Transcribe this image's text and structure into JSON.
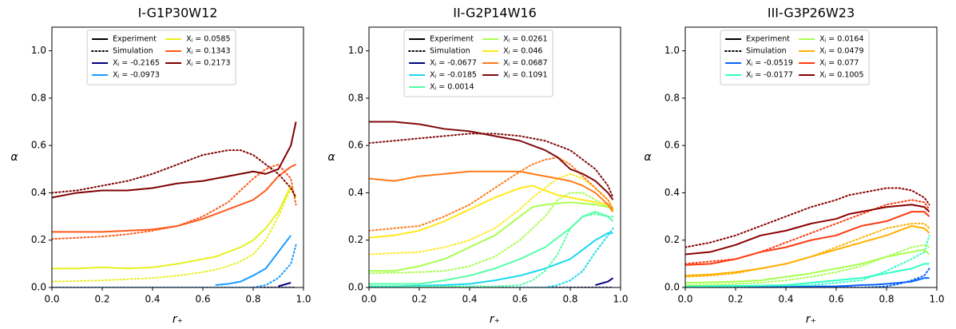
{
  "chart_data": [
    {
      "type": "line",
      "title": "I-G1P30W12",
      "x_label": "r₊",
      "y_label": "α",
      "xlim": [
        0,
        1
      ],
      "ylim": [
        0,
        1.1
      ],
      "xticks": [
        {
          "value": 0,
          "label": "0.0"
        },
        {
          "value": 0.2,
          "label": "0.2"
        },
        {
          "value": 0.4,
          "label": "0.4"
        },
        {
          "value": 0.6,
          "label": "0.6"
        },
        {
          "value": 0.8,
          "label": "0.8"
        },
        {
          "value": 1,
          "label": "1.0"
        }
      ],
      "yticks": [
        {
          "value": 0,
          "label": "0.0"
        },
        {
          "value": 0.2,
          "label": "0.2"
        },
        {
          "value": 0.4,
          "label": "0.4"
        },
        {
          "value": 0.6,
          "label": "0.6"
        },
        {
          "value": 0.8,
          "label": "0.8"
        },
        {
          "value": 1,
          "label": "1.0"
        }
      ],
      "legend_loc": "upper",
      "line_styles": [
        {
          "name": "Experiment",
          "dash": "solid"
        },
        {
          "name": "Simulation",
          "dash": "dotted"
        }
      ],
      "x": [
        0,
        0.1,
        0.2,
        0.3,
        0.4,
        0.5,
        0.6,
        0.65,
        0.7,
        0.75,
        0.8,
        0.85,
        0.9,
        0.95,
        0.97
      ],
      "series": [
        {
          "name": "Xⱼ = -0.2165",
          "color": "#00007f",
          "experiment": [
            null,
            null,
            null,
            null,
            null,
            null,
            null,
            null,
            null,
            null,
            null,
            null,
            0.005,
            0.02,
            null
          ],
          "simulation": [
            0,
            0,
            0,
            0,
            0,
            0,
            0,
            0,
            0,
            0,
            0,
            0,
            0,
            0,
            0
          ]
        },
        {
          "name": "Xⱼ = -0.0973",
          "color": "#1a9cff",
          "experiment": [
            null,
            null,
            null,
            null,
            null,
            null,
            null,
            0.01,
            0.015,
            0.025,
            0.05,
            0.08,
            0.15,
            0.22,
            null
          ],
          "simulation": [
            0,
            0,
            0,
            0,
            0,
            0,
            0,
            0,
            0,
            0,
            0,
            0.01,
            0.04,
            0.1,
            0.18
          ]
        },
        {
          "name": "Xⱼ = 0.0585",
          "color": "#e8f020",
          "experiment": [
            0.08,
            0.08,
            0.085,
            0.08,
            0.085,
            0.1,
            0.12,
            0.13,
            0.15,
            0.17,
            0.2,
            0.25,
            0.32,
            0.43,
            null
          ],
          "simulation": [
            0.025,
            0.027,
            0.03,
            0.035,
            0.04,
            0.05,
            0.065,
            0.075,
            0.09,
            0.11,
            0.14,
            0.2,
            0.3,
            0.42,
            0.38
          ]
        },
        {
          "name": "Xⱼ = 0.1343",
          "color": "#ff5a1a",
          "experiment": [
            0.235,
            0.235,
            0.235,
            0.24,
            0.245,
            0.26,
            0.29,
            0.31,
            0.33,
            0.35,
            0.37,
            0.41,
            0.47,
            0.51,
            0.52
          ],
          "simulation": [
            0.205,
            0.21,
            0.215,
            0.225,
            0.24,
            0.26,
            0.3,
            0.33,
            0.36,
            0.41,
            0.46,
            0.5,
            0.52,
            0.46,
            0.35
          ]
        },
        {
          "name": "Xⱼ = 0.2173",
          "color": "#800000",
          "experiment": [
            0.38,
            0.4,
            0.41,
            0.41,
            0.42,
            0.44,
            0.45,
            0.46,
            0.47,
            0.48,
            0.49,
            0.48,
            0.5,
            0.6,
            0.7
          ],
          "simulation": [
            0.4,
            0.41,
            0.43,
            0.45,
            0.48,
            0.52,
            0.56,
            0.57,
            0.58,
            0.58,
            0.56,
            0.52,
            0.48,
            0.42,
            0.38
          ]
        }
      ]
    },
    {
      "type": "line",
      "title": "II-G2P14W16",
      "x_label": "r₊",
      "y_label": "α",
      "xlim": [
        0,
        1
      ],
      "ylim": [
        0,
        1.1
      ],
      "xticks": [
        {
          "value": 0,
          "label": "0.0"
        },
        {
          "value": 0.2,
          "label": "0.2"
        },
        {
          "value": 0.4,
          "label": "0.4"
        },
        {
          "value": 0.6,
          "label": "0.6"
        },
        {
          "value": 0.8,
          "label": "0.8"
        },
        {
          "value": 1,
          "label": "1.0"
        }
      ],
      "yticks": [
        {
          "value": 0,
          "label": "0.0"
        },
        {
          "value": 0.2,
          "label": "0.2"
        },
        {
          "value": 0.4,
          "label": "0.4"
        },
        {
          "value": 0.6,
          "label": "0.6"
        },
        {
          "value": 0.8,
          "label": "0.8"
        },
        {
          "value": 1,
          "label": "1.0"
        }
      ],
      "legend_loc": "upper",
      "line_styles": [
        {
          "name": "Experiment",
          "dash": "solid"
        },
        {
          "name": "Simulation",
          "dash": "dotted"
        }
      ],
      "x": [
        0,
        0.1,
        0.2,
        0.3,
        0.4,
        0.5,
        0.6,
        0.65,
        0.7,
        0.75,
        0.8,
        0.85,
        0.9,
        0.95,
        0.97
      ],
      "series": [
        {
          "name": "Xⱼ = -0.0677",
          "color": "#00007f",
          "experiment": [
            null,
            null,
            null,
            null,
            null,
            null,
            null,
            null,
            null,
            null,
            null,
            null,
            0.01,
            0.025,
            0.04
          ],
          "simulation": [
            0,
            0,
            0,
            0,
            0,
            0,
            0,
            0,
            0,
            0,
            0,
            0,
            0,
            0,
            0
          ]
        },
        {
          "name": "Xⱼ = -0.0185",
          "color": "#1ad8f0",
          "experiment": [
            0.005,
            0.005,
            0.008,
            0.01,
            0.015,
            0.03,
            0.05,
            0.065,
            0.08,
            0.1,
            0.12,
            0.16,
            0.2,
            0.23,
            0.23
          ],
          "simulation": [
            0,
            0,
            0,
            0,
            0,
            0,
            0,
            0,
            0,
            0.01,
            0.03,
            0.07,
            0.15,
            0.22,
            0.25
          ]
        },
        {
          "name": "Xⱼ = 0.0014",
          "color": "#53ffa8",
          "experiment": [
            0.015,
            0.015,
            0.015,
            0.03,
            0.05,
            0.08,
            0.12,
            0.145,
            0.17,
            0.21,
            0.25,
            0.3,
            0.32,
            0.3,
            0.28
          ],
          "simulation": [
            0.005,
            0.005,
            0.005,
            0.005,
            0.005,
            0.005,
            0.01,
            0.03,
            0.07,
            0.14,
            0.25,
            0.3,
            0.31,
            0.3,
            0.3
          ]
        },
        {
          "name": "Xⱼ = 0.0261",
          "color": "#a8ff4f",
          "experiment": [
            0.07,
            0.07,
            0.09,
            0.12,
            0.17,
            0.22,
            0.3,
            0.34,
            0.35,
            0.355,
            0.36,
            0.355,
            0.35,
            0.34,
            0.33
          ],
          "simulation": [
            0.06,
            0.062,
            0.065,
            0.07,
            0.09,
            0.13,
            0.2,
            0.25,
            0.3,
            0.37,
            0.4,
            0.4,
            0.37,
            0.34,
            0.32
          ]
        },
        {
          "name": "Xⱼ = 0.046",
          "color": "#ffe81a",
          "experiment": [
            0.21,
            0.22,
            0.24,
            0.28,
            0.33,
            0.38,
            0.42,
            0.43,
            0.41,
            0.39,
            0.38,
            0.37,
            0.36,
            0.35,
            0.33
          ],
          "simulation": [
            0.14,
            0.145,
            0.15,
            0.17,
            0.2,
            0.25,
            0.33,
            0.38,
            0.42,
            0.46,
            0.48,
            0.46,
            0.42,
            0.37,
            0.33
          ]
        },
        {
          "name": "Xⱼ = 0.0687",
          "color": "#ff7a1a",
          "experiment": [
            0.46,
            0.45,
            0.47,
            0.48,
            0.49,
            0.49,
            0.49,
            0.48,
            0.47,
            0.46,
            0.45,
            0.43,
            0.4,
            0.35,
            0.32
          ],
          "simulation": [
            0.24,
            0.25,
            0.26,
            0.3,
            0.35,
            0.42,
            0.49,
            0.52,
            0.54,
            0.55,
            0.52,
            0.47,
            0.42,
            0.37,
            0.33
          ]
        },
        {
          "name": "Xⱼ = 0.1091",
          "color": "#800a0a",
          "experiment": [
            0.7,
            0.7,
            0.69,
            0.67,
            0.66,
            0.64,
            0.62,
            0.6,
            0.58,
            0.55,
            0.5,
            0.48,
            0.45,
            0.4,
            0.37
          ],
          "simulation": [
            0.61,
            0.62,
            0.63,
            0.64,
            0.65,
            0.65,
            0.64,
            0.63,
            0.62,
            0.6,
            0.58,
            0.54,
            0.5,
            0.43,
            0.38
          ]
        }
      ]
    },
    {
      "type": "line",
      "title": "III-G3P26W23",
      "x_label": "r₊",
      "y_label": "α",
      "xlim": [
        0,
        1
      ],
      "ylim": [
        0,
        1.1
      ],
      "xticks": [
        {
          "value": 0,
          "label": "0.0"
        },
        {
          "value": 0.2,
          "label": "0.2"
        },
        {
          "value": 0.4,
          "label": "0.4"
        },
        {
          "value": 0.6,
          "label": "0.6"
        },
        {
          "value": 0.8,
          "label": "0.8"
        },
        {
          "value": 1,
          "label": "1.0"
        }
      ],
      "yticks": [
        {
          "value": 0,
          "label": "0.0"
        },
        {
          "value": 0.2,
          "label": "0.2"
        },
        {
          "value": 0.4,
          "label": "0.4"
        },
        {
          "value": 0.6,
          "label": "0.6"
        },
        {
          "value": 0.8,
          "label": "0.8"
        },
        {
          "value": 1,
          "label": "1.0"
        }
      ],
      "legend_loc": "upper",
      "line_styles": [
        {
          "name": "Experiment",
          "dash": "solid"
        },
        {
          "name": "Simulation",
          "dash": "dotted"
        }
      ],
      "x": [
        0,
        0.1,
        0.2,
        0.3,
        0.4,
        0.5,
        0.6,
        0.65,
        0.7,
        0.75,
        0.8,
        0.85,
        0.9,
        0.95,
        0.97
      ],
      "series": [
        {
          "name": "Xⱼ = -0.0519",
          "color": "#0a64ff",
          "experiment": [
            0.003,
            0.003,
            0.003,
            0.003,
            0.003,
            0.004,
            0.005,
            0.007,
            0.01,
            0.012,
            0.015,
            0.02,
            0.025,
            0.04,
            0.04
          ],
          "simulation": [
            0,
            0,
            0,
            0,
            0,
            0,
            0,
            0,
            0,
            0.002,
            0.005,
            0.015,
            0.03,
            0.05,
            0.08
          ]
        },
        {
          "name": "Xⱼ = -0.0177",
          "color": "#33ffc4",
          "experiment": [
            0.005,
            0.006,
            0.007,
            0.008,
            0.01,
            0.02,
            0.03,
            0.035,
            0.04,
            0.05,
            0.06,
            0.07,
            0.08,
            0.1,
            0.1
          ],
          "simulation": [
            0.003,
            0.004,
            0.005,
            0.007,
            0.008,
            0.01,
            0.02,
            0.025,
            0.03,
            0.05,
            0.07,
            0.095,
            0.12,
            0.15,
            0.22
          ]
        },
        {
          "name": "Xⱼ = 0.0164",
          "color": "#a6ff50",
          "experiment": [
            0.02,
            0.022,
            0.025,
            0.03,
            0.045,
            0.06,
            0.08,
            0.09,
            0.1,
            0.115,
            0.13,
            0.14,
            0.15,
            0.16,
            0.14
          ],
          "simulation": [
            0.01,
            0.012,
            0.015,
            0.02,
            0.03,
            0.045,
            0.065,
            0.077,
            0.09,
            0.11,
            0.13,
            0.15,
            0.17,
            0.18,
            0.17
          ]
        },
        {
          "name": "Xⱼ = 0.0479",
          "color": "#ffb000",
          "experiment": [
            0.05,
            0.055,
            0.065,
            0.08,
            0.1,
            0.13,
            0.16,
            0.175,
            0.19,
            0.205,
            0.22,
            0.24,
            0.26,
            0.25,
            0.23
          ],
          "simulation": [
            0.045,
            0.05,
            0.06,
            0.08,
            0.1,
            0.13,
            0.17,
            0.19,
            0.21,
            0.23,
            0.25,
            0.26,
            0.27,
            0.27,
            0.25
          ]
        },
        {
          "name": "Xⱼ = 0.077",
          "color": "#ff3a10",
          "experiment": [
            0.095,
            0.1,
            0.12,
            0.15,
            0.17,
            0.2,
            0.22,
            0.24,
            0.26,
            0.27,
            0.28,
            0.3,
            0.32,
            0.32,
            0.3
          ],
          "simulation": [
            0.1,
            0.11,
            0.12,
            0.15,
            0.19,
            0.23,
            0.27,
            0.29,
            0.31,
            0.33,
            0.35,
            0.36,
            0.37,
            0.36,
            0.33
          ]
        },
        {
          "name": "Xⱼ = 0.1005",
          "color": "#8a0000",
          "experiment": [
            0.14,
            0.15,
            0.18,
            0.22,
            0.24,
            0.27,
            0.29,
            0.31,
            0.32,
            0.33,
            0.34,
            0.345,
            0.35,
            0.34,
            0.32
          ],
          "simulation": [
            0.17,
            0.19,
            0.22,
            0.26,
            0.3,
            0.34,
            0.37,
            0.39,
            0.4,
            0.41,
            0.42,
            0.42,
            0.41,
            0.38,
            0.35
          ]
        }
      ]
    }
  ]
}
